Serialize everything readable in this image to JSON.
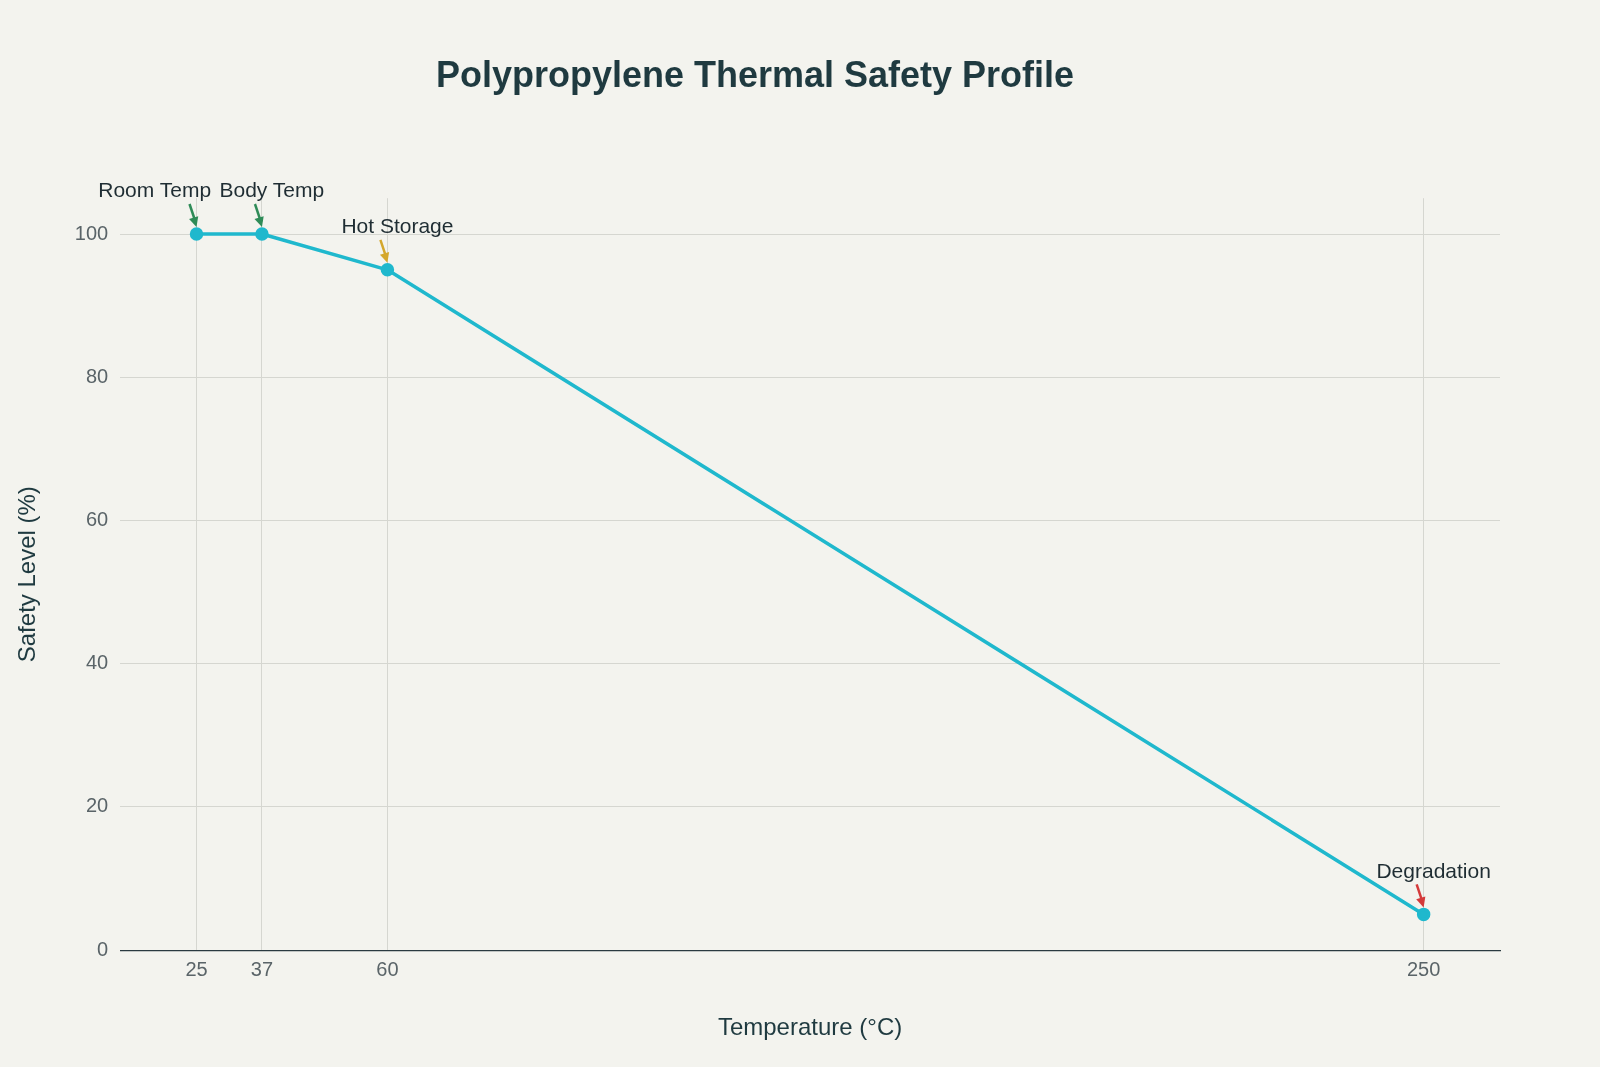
{
  "chart_data": {
    "type": "line",
    "title": "Polypropylene Thermal Safety Profile",
    "xlabel": "Temperature (°C)",
    "ylabel": "Safety Level (%)",
    "x": [
      25,
      37,
      60,
      250
    ],
    "values": [
      100,
      100,
      95,
      5
    ],
    "color": "#1fb8cd",
    "marker": "circle",
    "line_style": "solid",
    "xlim": [
      11,
      264
    ],
    "ylim": [
      0,
      105
    ],
    "xticks": [
      25,
      37,
      60,
      250
    ],
    "yticks": [
      0,
      20,
      40,
      60,
      80,
      100
    ],
    "grid": true,
    "legend": false,
    "annotations": [
      {
        "text": "Room Temp",
        "x": 25,
        "y": 100
      },
      {
        "text": "Body Temp",
        "x": 37,
        "y": 100
      },
      {
        "text": "Hot Storage",
        "x": 60,
        "y": 95
      },
      {
        "text": "Degradation",
        "x": 250,
        "y": 5
      }
    ]
  }
}
